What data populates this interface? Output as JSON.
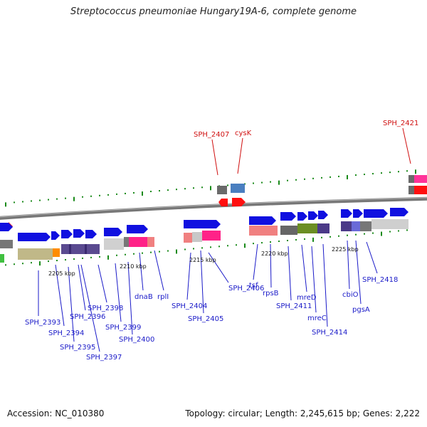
{
  "title": "Streptococcus pneumoniae Hungary19A-6, complete genome",
  "footer": {
    "accession": "Accession: NC_010380",
    "info": "Topology: circular; Length: 2,245,615 bp; Genes: 2,222"
  },
  "colors": {
    "backbone": "#777777",
    "tick": "#1a8a1a",
    "forward_gene": "#1010e0",
    "blue_label": "#1a1ac8",
    "red_label": "#d01010"
  },
  "kbp_labels": [
    "2205 kbp",
    "2210 kbp",
    "2215 kbp",
    "2220 kbp",
    "2225 kbp"
  ],
  "gene_labels_blue": [
    "SPH_2393",
    "SPH_2394",
    "SPH_2395",
    "SPH_2396",
    "SPH_2397",
    "SPH_2398",
    "SPH_2399",
    "SPH_2400",
    "dnaB",
    "rplI",
    "SPH_2404",
    "SPH_2405",
    "SPH_2406",
    "tsf",
    "rpsB",
    "SPH_2411",
    "mreD",
    "mreC",
    "SPH_2414",
    "cbiO",
    "pgsA",
    "SPH_2418"
  ],
  "gene_labels_red": [
    "SPH_2407",
    "cysK",
    "SPH_2421"
  ]
}
